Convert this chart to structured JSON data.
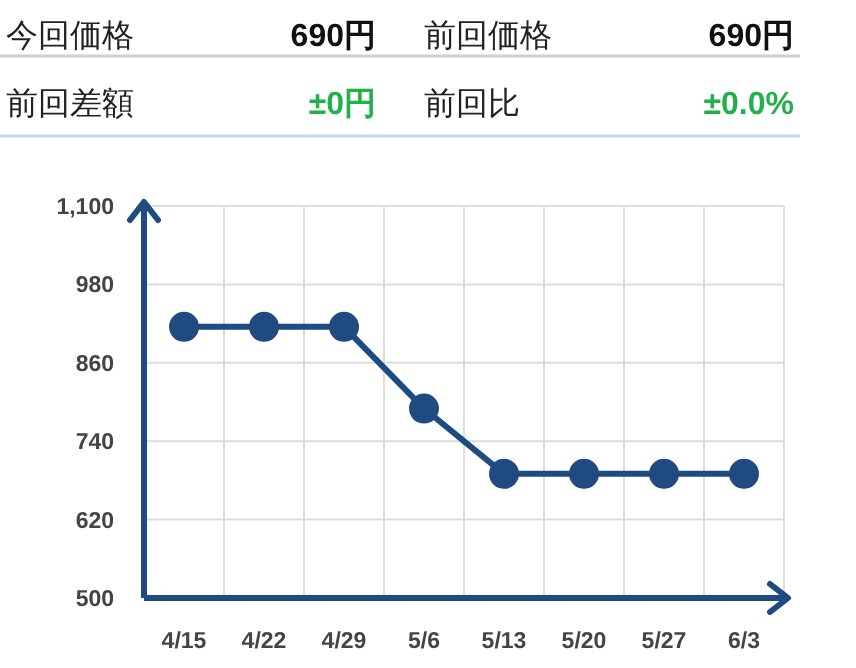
{
  "chart_data": [
    {
      "type": "other",
      "annotations": [
        "今回価格",
        "690円",
        "前回価格",
        "690円",
        "前回差額",
        "±0円",
        "前回比",
        "±0.0%"
      ],
      "colors": [
        "#222222",
        "#111111",
        "#222222",
        "#111111",
        "#222222",
        "#22b04b",
        "#222222",
        "#22b04b"
      ]
    },
    {
      "type": "line",
      "categories": [
        "4/15",
        "4/22",
        "4/29",
        "5/6",
        "5/13",
        "5/20",
        "5/27",
        "6/3"
      ],
      "series": [
        {
          "color": "#1d4b82",
          "values": [
            915,
            915,
            915,
            790,
            690,
            690,
            690,
            690
          ]
        }
      ],
      "ylim": [
        500,
        1100
      ],
      "yticks": [
        500,
        620,
        740,
        860,
        980,
        {
          "value": 1100,
          "label": "1,100"
        }
      ],
      "grid": true,
      "marker": "circle",
      "line_style": "solid"
    }
  ]
}
